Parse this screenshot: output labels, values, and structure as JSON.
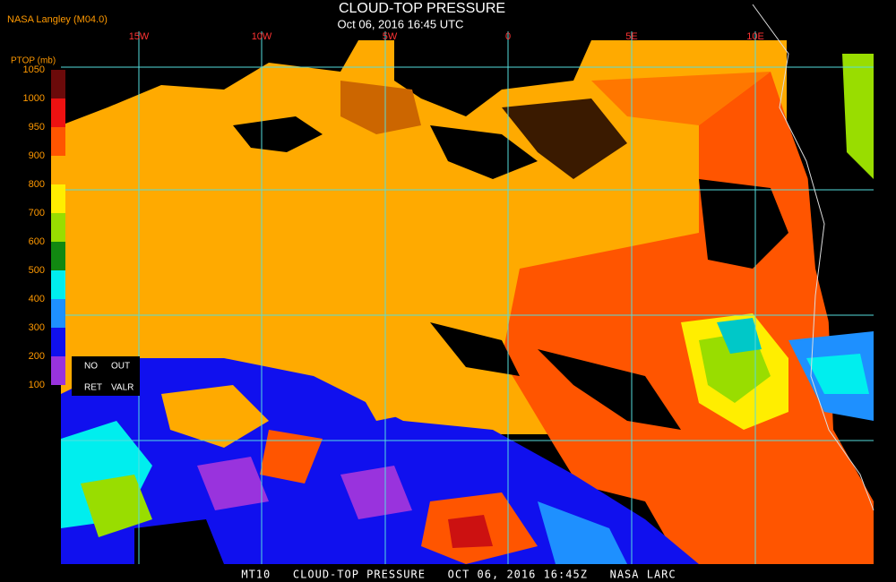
{
  "header": {
    "source": "NASA Langley (M04.0)",
    "title": "CLOUD-TOP PRESSURE",
    "datetime": "Oct 06, 2016 16:45 UTC"
  },
  "longitude_labels": [
    "15W",
    "10W",
    "5W",
    "0",
    "5E",
    "10E"
  ],
  "colorbar": {
    "label": "PTOP (mb)",
    "ticks": [
      1050,
      1000,
      950,
      900,
      800,
      700,
      600,
      500,
      400,
      300,
      200,
      100
    ],
    "colors": [
      "#6b0a0a",
      "#ee1111",
      "#ff5500",
      "#ffaa00",
      "#ffee00",
      "#99dd00",
      "#118811",
      "#00eeee",
      "#1e90ff",
      "#1010ee",
      "#9933dd"
    ]
  },
  "legend": {
    "items": [
      "NO",
      "OUT",
      "RET",
      "VALR"
    ]
  },
  "caption": "MT10   CLOUD-TOP PRESSURE   OCT 06, 2016 16:45Z   NASA LARC"
}
